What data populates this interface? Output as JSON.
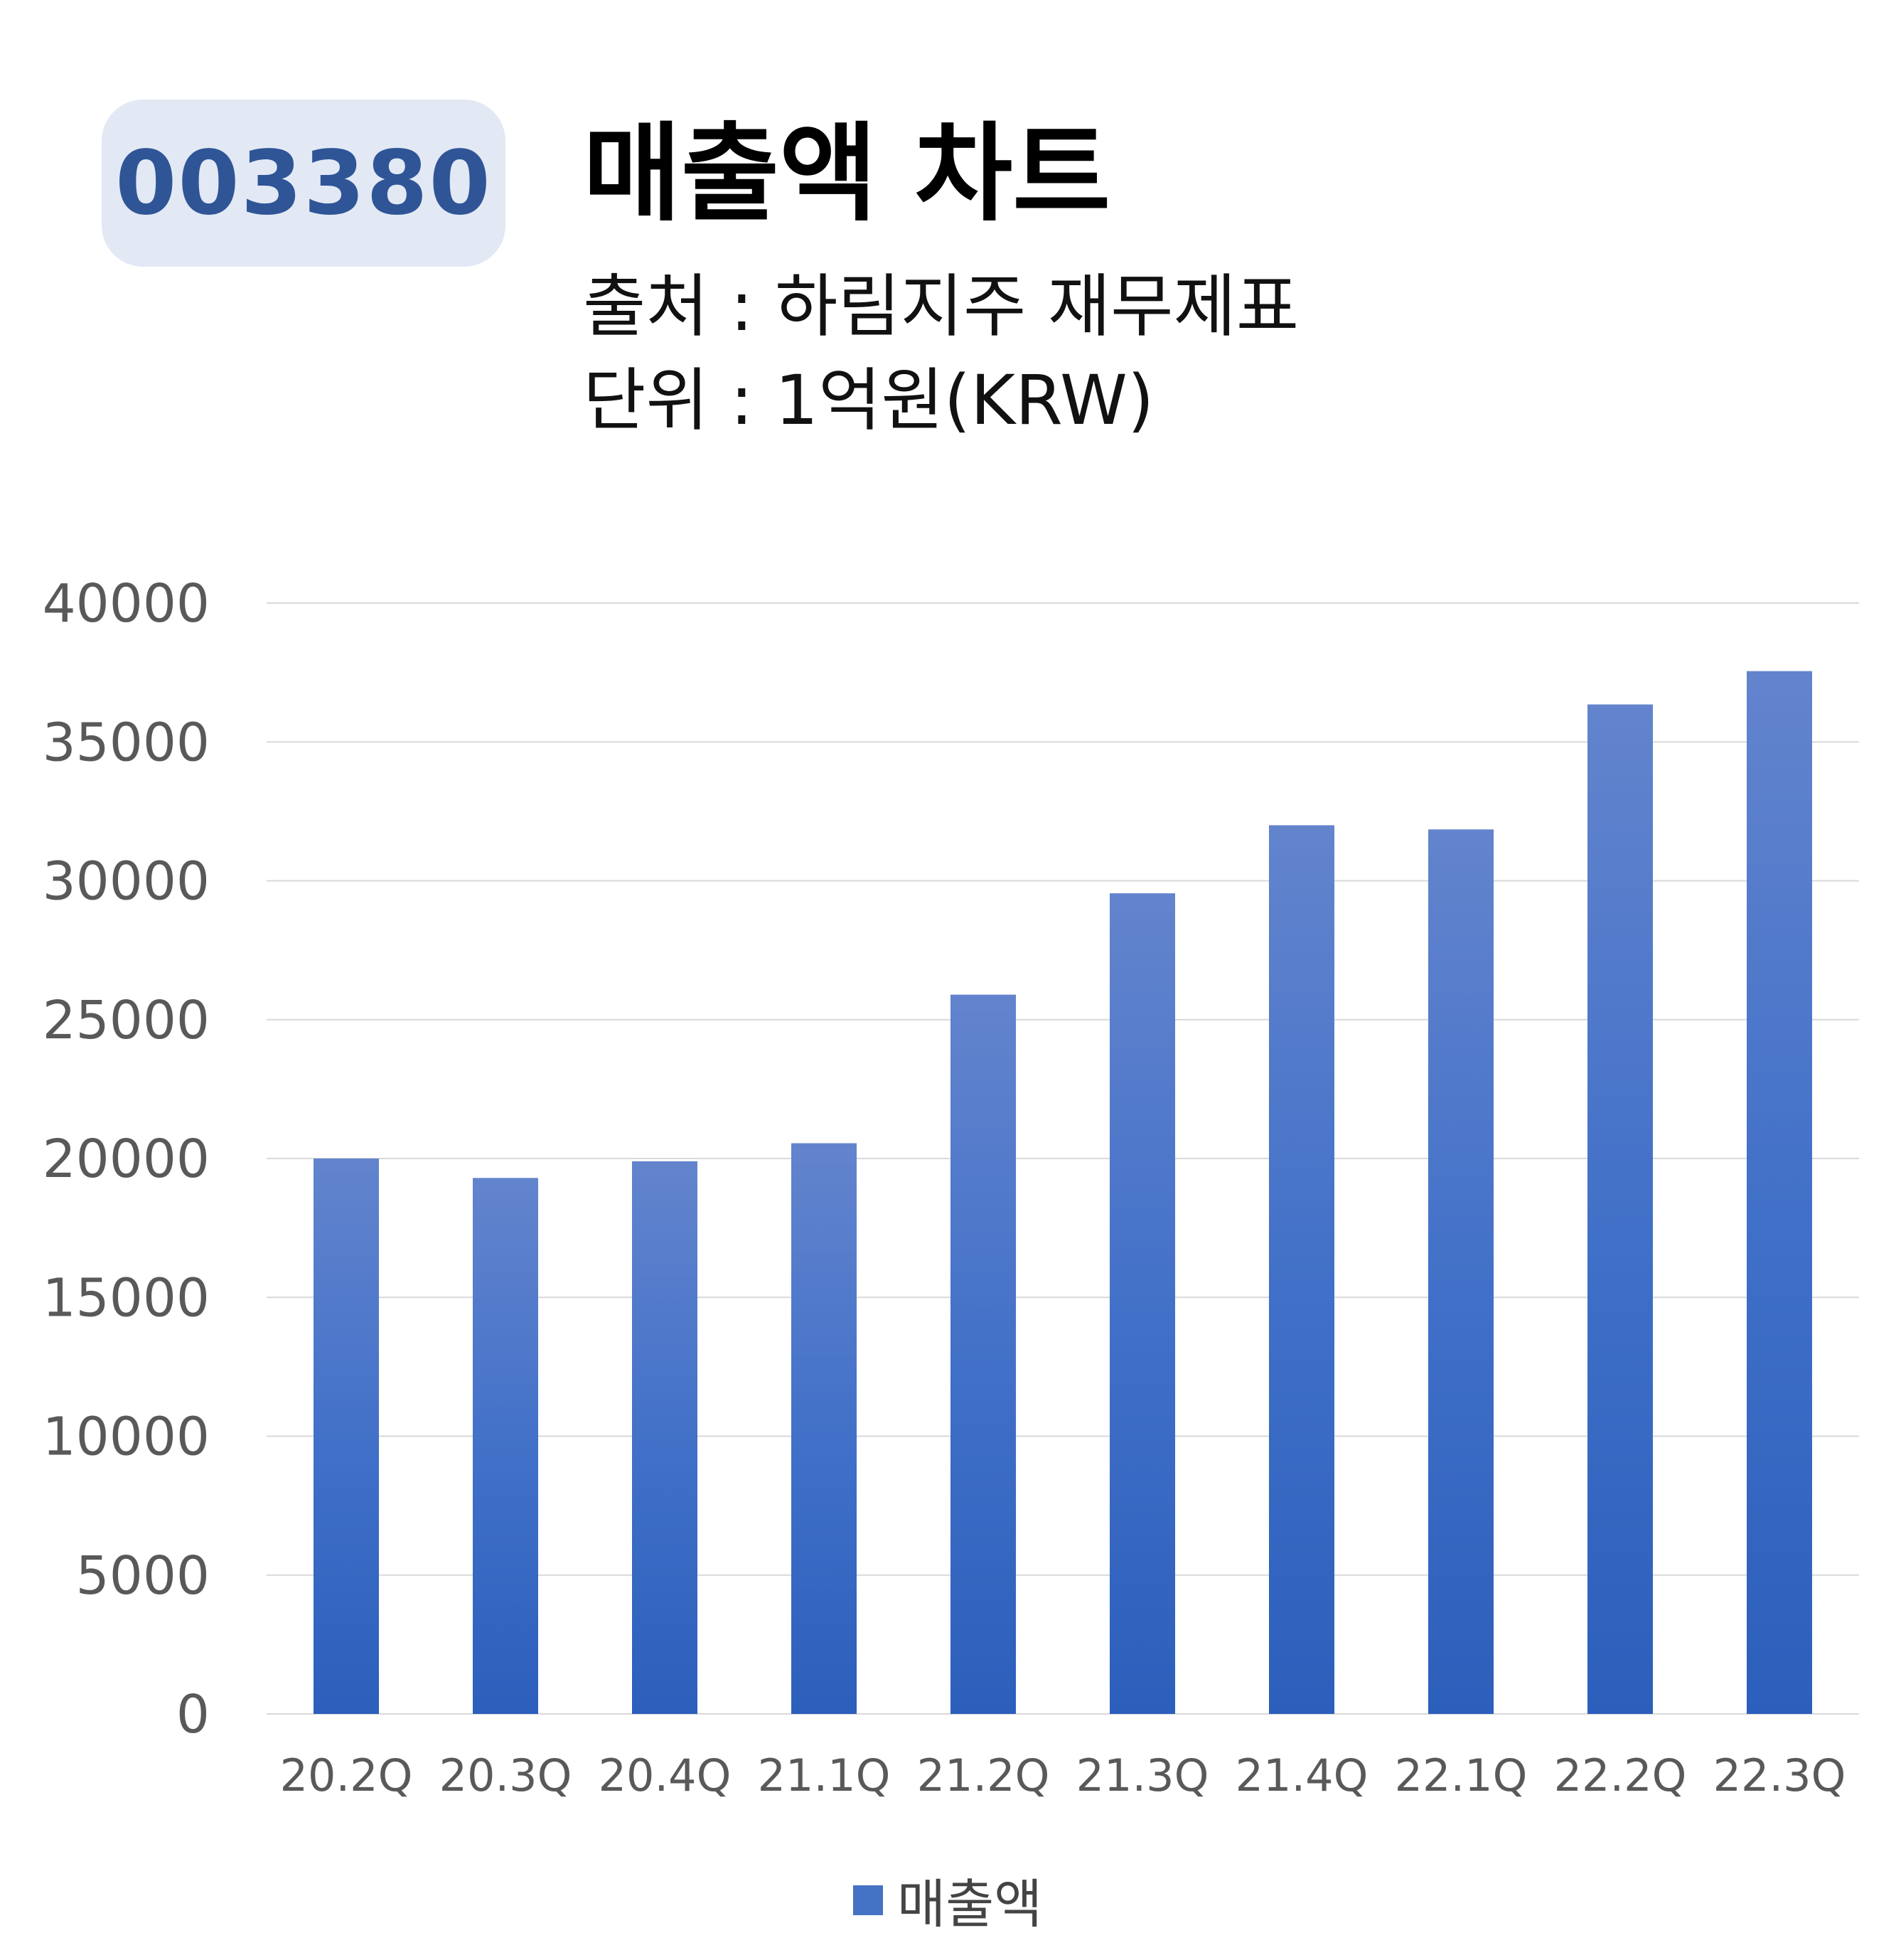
{
  "header": {
    "ticker": "003380",
    "title": "매출액 차트",
    "source": "출처 : 하림지주 재무제표",
    "unit": "단위 : 1억원(KRW)"
  },
  "colors": {
    "bar_top": "#6384cd",
    "bar_bottom": "#2c5fbb",
    "grid": "#d9d9d9",
    "axis_text": "#595959"
  },
  "chart_data": {
    "type": "bar",
    "categories": [
      "20.2Q",
      "20.3Q",
      "20.4Q",
      "21.1Q",
      "21.2Q",
      "21.3Q",
      "21.4Q",
      "22.1Q",
      "22.2Q",
      "22.3Q"
    ],
    "series": [
      {
        "name": "매출액",
        "values": [
          20000,
          19300,
          19900,
          20550,
          25900,
          29550,
          32000,
          31850,
          36350,
          37550
        ]
      }
    ],
    "yticks": [
      "0",
      "5000",
      "10000",
      "15000",
      "20000",
      "25000",
      "30000",
      "35000",
      "40000"
    ],
    "ylim": [
      0,
      40000
    ],
    "grid": true,
    "legend": "bottom"
  }
}
